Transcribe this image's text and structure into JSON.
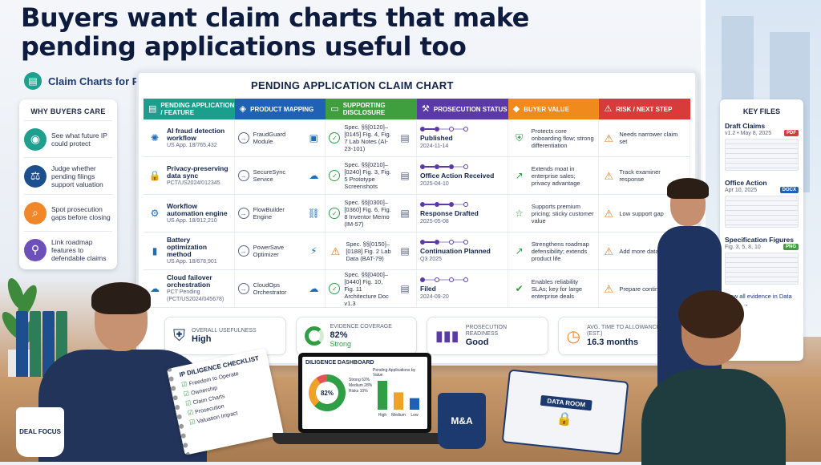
{
  "headline": "Buyers want claim charts that make pending applications useful too",
  "subtitle": "Claim Charts for Pending Applications",
  "why": {
    "title": "WHY BUYERS CARE",
    "items": [
      {
        "icon": "eye-icon",
        "text": "See what future IP could protect",
        "color": "#1fa08e"
      },
      {
        "icon": "scales-icon",
        "text": "Judge whether pending filings support valuation",
        "color": "#1d4f8e"
      },
      {
        "icon": "magnifier-icon",
        "text": "Spot prosecution gaps before closing",
        "color": "#f0882a"
      },
      {
        "icon": "roadmap-icon",
        "text": "Link roadmap features to defendable claims",
        "color": "#6c4fb8"
      }
    ]
  },
  "board": {
    "title": "PENDING APPLICATION CLAIM CHART",
    "headers": [
      {
        "label": "PENDING APPLICATION / FEATURE",
        "color": "#1b9e8c",
        "icon": "list-icon"
      },
      {
        "label": "PRODUCT MAPPING",
        "color": "#1f62b5",
        "icon": "cube-icon"
      },
      {
        "label": "SUPPORTING DISCLOSURE",
        "color": "#3f9f3f",
        "icon": "folder-icon"
      },
      {
        "label": "PROSECUTION STATUS",
        "color": "#5b3aa8",
        "icon": "gavel-icon"
      },
      {
        "label": "BUYER VALUE",
        "color": "#f08a1c",
        "icon": "diamond-icon"
      },
      {
        "label": "RISK / NEXT STEP",
        "color": "#d93a3a",
        "icon": "warning-icon"
      }
    ],
    "rows": [
      {
        "feature": "AI fraud detection workflow",
        "app": "US App. 18/765,432",
        "feature_icon": "brain-icon",
        "product": "FraudGuard Module",
        "product_icon": "monitor-icon",
        "disclosure": "Spec. §§[0120]–[0145] Fig. 4, Fig. 7 Lab Notes (AI-23-101)",
        "disclosure_status": "ok",
        "status": "Published",
        "status_date": "2024-11-14",
        "progress": 0.5,
        "value": "Protects core onboarding flow; strong differentiation",
        "value_icon": "shield-icon",
        "risk": "Needs narrower claim set"
      },
      {
        "feature": "Privacy-preserving data sync",
        "app": "PCT/US2024/012345",
        "feature_icon": "lock-icon",
        "product": "SecureSync Service",
        "product_icon": "cloud-icon",
        "disclosure": "Spec. §§[0210]–[0240] Fig. 3, Fig. 5 Prototype Screenshots",
        "disclosure_status": "ok",
        "status": "Office Action Received",
        "status_date": "2025-04-10",
        "progress": 0.75,
        "value": "Extends moat in enterprise sales; privacy advantage",
        "value_icon": "chart-up-icon",
        "risk": "Track examiner response"
      },
      {
        "feature": "Workflow automation engine",
        "app": "US App. 18/912,210",
        "feature_icon": "gear-icon",
        "product": "FlowBuilder Engine",
        "product_icon": "flow-icon",
        "disclosure": "Spec. §§[0300]–[0360] Fig. 6, Fig. 8 Inventor Memo (IM-57)",
        "disclosure_status": "ok",
        "status": "Response Drafted",
        "status_date": "2025-05-08",
        "progress": 0.75,
        "value": "Supports premium pricing; sticky customer value",
        "value_icon": "star-icon",
        "risk": "Low support gap"
      },
      {
        "feature": "Battery optimization method",
        "app": "US App. 18/678,901",
        "feature_icon": "battery-icon",
        "product": "PowerSave Optimizer",
        "product_icon": "power-icon",
        "disclosure": "Spec. §§[0150]–[0188] Fig. 2 Lab Data (BAT-79)",
        "disclosure_status": "warn",
        "status": "Continuation Planned",
        "status_date": "Q3 2025",
        "progress": 0.5,
        "value": "Strengthens roadmap defensibility; extends product life",
        "value_icon": "trend-icon",
        "risk": "Add more data examples"
      },
      {
        "feature": "Cloud failover orchestration",
        "app": "PCT Pending (PCT/US2024/045678)",
        "feature_icon": "cloud-icon",
        "product": "CloudOps Orchestrator",
        "product_icon": "cloud-sync-icon",
        "disclosure": "Spec. §§[0400]–[0440] Fig. 10, Fig. 11 Architecture Doc v1.3",
        "disclosure_status": "ok",
        "status": "Filed",
        "status_date": "2024-09-20",
        "progress": 0.25,
        "value": "Enables reliability SLAs; key for large enterprise deals",
        "value_icon": "check-icon",
        "risk": "Prepare continuation"
      }
    ],
    "kpis": [
      {
        "label": "OVERALL USEFULNESS",
        "value": "High",
        "icon": "shield-icon",
        "color": "#1d3a70"
      },
      {
        "label": "EVIDENCE COVERAGE",
        "value": "82%",
        "sub": "Strong",
        "icon": "ring-icon",
        "color": "#2f9e44"
      },
      {
        "label": "PROSECUTION READINESS",
        "value": "Good",
        "icon": "bars-icon",
        "color": "#5b3aa8"
      },
      {
        "label": "AVG. TIME TO ALLOWANCE (EST.)",
        "value": "16.3 months",
        "icon": "clock-icon",
        "color": "#f08a1c"
      }
    ]
  },
  "files": {
    "title": "KEY FILES",
    "items": [
      {
        "name": "Draft Claims",
        "meta": "v1.2 • May 8, 2025",
        "type": "PDF",
        "color": "#d93a3a"
      },
      {
        "name": "Office Action",
        "meta": "Apr 10, 2025",
        "type": "DOCX",
        "color": "#1f62b5"
      },
      {
        "name": "Specification Figures",
        "meta": "Fig. 3, 5, 8, 10",
        "type": "PNG",
        "color": "#3f9f3f"
      }
    ],
    "view_all": "View all evidence in Data Room →"
  },
  "checklist": {
    "title": "IP DILIGENCE CHECKLIST",
    "items": [
      "Freedom to Operate",
      "Ownership",
      "Claim Charts",
      "Prosecution",
      "Valuation Impact"
    ]
  },
  "dashboard": {
    "title": "DILIGENCE DASHBOARD",
    "pie_value": "82%",
    "legend": [
      "Strong 62%",
      "Medium 28%",
      "Risks 10%"
    ],
    "bar_title": "Pending Applications by Value",
    "bar_labels": [
      "High",
      "Medium",
      "Low"
    ],
    "bar_values": [
      5,
      3,
      2
    ]
  },
  "mug1": "DEAL FOCUS",
  "mug2": "M&A",
  "binder": "DATA ROOM"
}
